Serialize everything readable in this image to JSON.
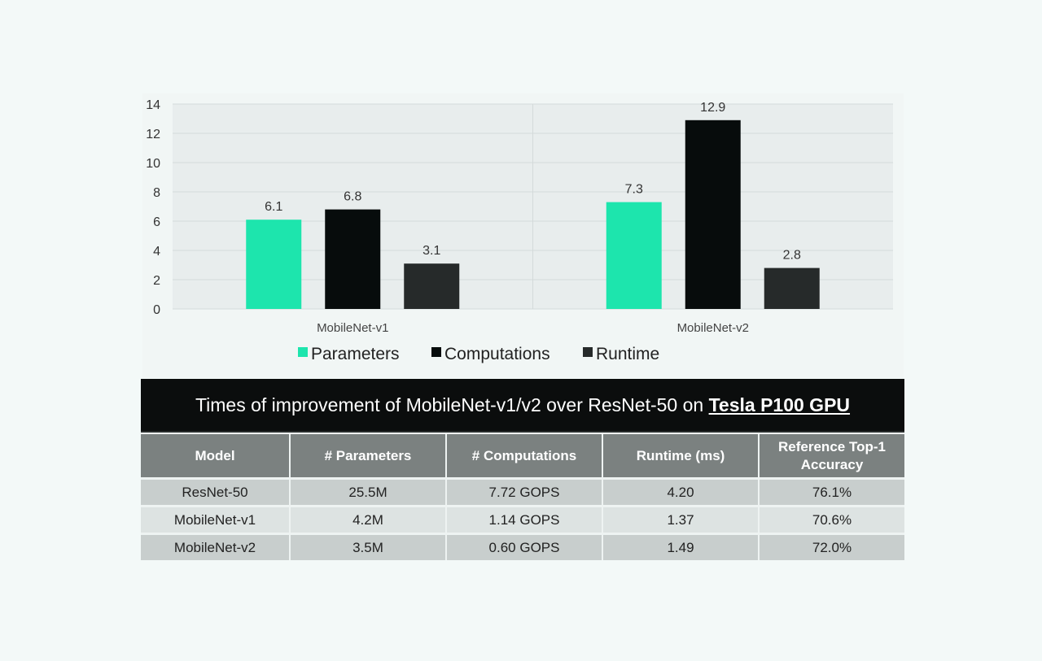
{
  "chart_data": {
    "type": "bar",
    "categories": [
      "MobileNet-v1",
      "MobileNet-v2"
    ],
    "series": [
      {
        "name": "Parameters",
        "values": [
          6.1,
          7.3
        ],
        "color": "#1de5ad"
      },
      {
        "name": "Computations",
        "values": [
          6.8,
          12.9
        ],
        "color": "#070c0c"
      },
      {
        "name": "Runtime",
        "values": [
          3.1,
          2.8
        ],
        "color": "#262a2a"
      }
    ],
    "ylim": [
      0,
      14
    ],
    "yticks": [
      0,
      2,
      4,
      6,
      8,
      10,
      12,
      14
    ],
    "grid": true,
    "legend": "bottom"
  },
  "table": {
    "title_prefix": "Times of improvement of MobileNet-v1/v2 over ResNet-50 on ",
    "title_emph": "Tesla P100 GPU",
    "headers": [
      "Model",
      "# Parameters",
      "# Computations",
      "Runtime (ms)",
      "Reference Top-1 Accuracy"
    ],
    "rows": [
      [
        "ResNet-50",
        "25.5M",
        "7.72 GOPS",
        "4.20",
        "76.1%"
      ],
      [
        "MobileNet-v1",
        "4.2M",
        "1.14 GOPS",
        "1.37",
        "70.6%"
      ],
      [
        "MobileNet-v2",
        "3.5M",
        "0.60 GOPS",
        "1.49",
        "72.0%"
      ]
    ]
  }
}
